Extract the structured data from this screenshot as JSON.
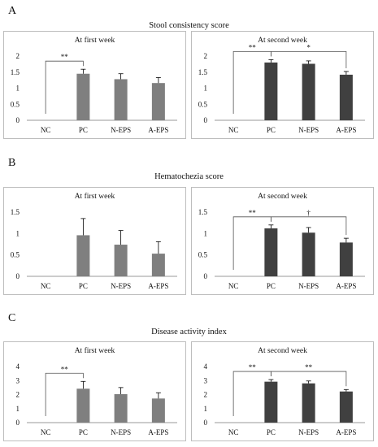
{
  "panels": [
    {
      "letter": "A",
      "title": "Stool consistency score"
    },
    {
      "letter": "B",
      "title": "Hematochezia score"
    },
    {
      "letter": "C",
      "title": "Disease activity index"
    }
  ],
  "colors": {
    "first_week_bar": "#7f7f7f",
    "second_week_bar": "#404040",
    "axis": "#999999",
    "error_bar": "#000000"
  },
  "chart_data": [
    {
      "type": "bar",
      "panel": "A",
      "title": "At first week",
      "categories": [
        "NC",
        "PC",
        "N-EPS",
        "A-EPS"
      ],
      "values": [
        0,
        1.45,
        1.28,
        1.16
      ],
      "errors": [
        0,
        0.14,
        0.17,
        0.17
      ],
      "ylim": [
        0,
        2
      ],
      "yticks": [
        "0",
        "0.5",
        "1",
        "1.5",
        "2"
      ],
      "grid": false,
      "color": "#7f7f7f",
      "annotations": [
        {
          "from": 0,
          "to": 1,
          "label": "**"
        }
      ]
    },
    {
      "type": "bar",
      "panel": "A",
      "title": "At second week",
      "categories": [
        "NC",
        "PC",
        "N-EPS",
        "A-EPS"
      ],
      "values": [
        0,
        1.8,
        1.76,
        1.42
      ],
      "errors": [
        0,
        0.09,
        0.09,
        0.1
      ],
      "ylim": [
        0,
        2
      ],
      "yticks": [
        "0",
        "0.5",
        "1",
        "1.5",
        "2"
      ],
      "grid": false,
      "color": "#404040",
      "annotations": [
        {
          "from": 0,
          "to": 1,
          "label": "**"
        },
        {
          "from": 1,
          "to": 3,
          "label": "*"
        }
      ]
    },
    {
      "type": "bar",
      "panel": "B",
      "title": "At first week",
      "categories": [
        "NC",
        "PC",
        "N-EPS",
        "A-EPS"
      ],
      "values": [
        0,
        0.96,
        0.74,
        0.53
      ],
      "errors": [
        0,
        0.39,
        0.33,
        0.28
      ],
      "ylim": [
        0,
        1.5
      ],
      "yticks": [
        "0",
        "0.5",
        "1",
        "1.5"
      ],
      "grid": false,
      "color": "#7f7f7f",
      "annotations": []
    },
    {
      "type": "bar",
      "panel": "B",
      "title": "At second week",
      "categories": [
        "NC",
        "PC",
        "N-EPS",
        "A-EPS"
      ],
      "values": [
        0,
        1.12,
        1.02,
        0.79
      ],
      "errors": [
        0,
        0.08,
        0.12,
        0.1
      ],
      "ylim": [
        0,
        1.5
      ],
      "yticks": [
        "0",
        "0.5",
        "1",
        "1.5"
      ],
      "grid": false,
      "color": "#404040",
      "annotations": [
        {
          "from": 0,
          "to": 1,
          "label": "**"
        },
        {
          "from": 1,
          "to": 3,
          "label": "†"
        }
      ]
    },
    {
      "type": "bar",
      "panel": "C",
      "title": "At first week",
      "categories": [
        "NC",
        "PC",
        "N-EPS",
        "A-EPS"
      ],
      "values": [
        0,
        2.42,
        2.03,
        1.72
      ],
      "errors": [
        0,
        0.52,
        0.47,
        0.41
      ],
      "ylim": [
        0,
        4
      ],
      "yticks": [
        "0",
        "1",
        "2",
        "3",
        "4"
      ],
      "grid": false,
      "color": "#7f7f7f",
      "annotations": [
        {
          "from": 0,
          "to": 1,
          "label": "**"
        }
      ]
    },
    {
      "type": "bar",
      "panel": "C",
      "title": "At second week",
      "categories": [
        "NC",
        "PC",
        "N-EPS",
        "A-EPS"
      ],
      "values": [
        0,
        2.92,
        2.8,
        2.22
      ],
      "errors": [
        0,
        0.15,
        0.17,
        0.14
      ],
      "ylim": [
        0,
        4
      ],
      "yticks": [
        "0",
        "1",
        "2",
        "3",
        "4"
      ],
      "grid": false,
      "color": "#404040",
      "annotations": [
        {
          "from": 0,
          "to": 1,
          "label": "**"
        },
        {
          "from": 1,
          "to": 3,
          "label": "**"
        }
      ]
    }
  ]
}
